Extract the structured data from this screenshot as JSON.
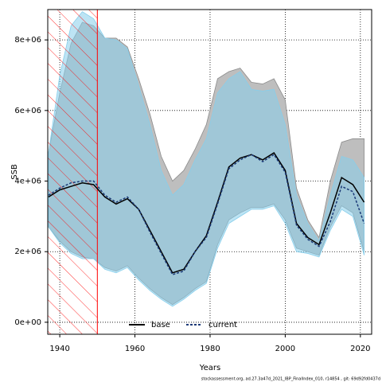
{
  "chart_data": {
    "type": "band-line",
    "x_label": "Years",
    "y_label": "SSB",
    "footer": "stockassessment.org, ad.27.3a47d_2021_IBP_FinalIndex_010, r14854 , git: 69d92fd0437d",
    "x": [
      1937,
      1940,
      1943,
      1946,
      1949,
      1952,
      1955,
      1958,
      1961,
      1964,
      1967,
      1970,
      1973,
      1976,
      1979,
      1982,
      1985,
      1988,
      1991,
      1994,
      1997,
      2000,
      2003,
      2006,
      2009,
      2012,
      2015,
      2018,
      2021
    ],
    "series": [
      {
        "name": "base",
        "color": "#000000",
        "dash": false,
        "band_color": "#bebebe",
        "band_stroke": "#8c8c8c",
        "values": [
          3550000,
          3750000,
          3850000,
          3950000,
          3900000,
          3550000,
          3350000,
          3500000,
          3200000,
          2600000,
          2000000,
          1400000,
          1500000,
          2000000,
          2450000,
          3400000,
          4400000,
          4650000,
          4750000,
          4600000,
          4800000,
          4300000,
          2800000,
          2400000,
          2200000,
          3100000,
          4100000,
          3900000,
          3400000
        ],
        "upper": [
          4800000,
          6500000,
          7900000,
          8500000,
          8400000,
          8050000,
          8050000,
          7800000,
          6900000,
          5900000,
          4700000,
          4000000,
          4300000,
          4900000,
          5600000,
          6900000,
          7100000,
          7200000,
          6800000,
          6750000,
          6900000,
          6300000,
          3800000,
          2900000,
          2400000,
          4000000,
          5100000,
          5200000,
          5200000
        ],
        "lower": [
          2700000,
          2300000,
          2000000,
          1850000,
          1800000,
          1550000,
          1450000,
          1600000,
          1250000,
          950000,
          700000,
          500000,
          700000,
          950000,
          1150000,
          2200000,
          2900000,
          3100000,
          3250000,
          3250000,
          3350000,
          2900000,
          2100000,
          2000000,
          1900000,
          2700000,
          3300000,
          3100000,
          2000000
        ]
      },
      {
        "name": "current",
        "color": "#1b3a78",
        "dash": true,
        "band_color": "rgba(135,206,235,0.55)",
        "band_stroke": "#87ceeb",
        "values": [
          3600000,
          3800000,
          3950000,
          4000000,
          4000000,
          3600000,
          3400000,
          3550000,
          3200000,
          2550000,
          1950000,
          1350000,
          1450000,
          2000000,
          2400000,
          3350000,
          4350000,
          4600000,
          4750000,
          4550000,
          4750000,
          4250000,
          2750000,
          2350000,
          2150000,
          2850000,
          3850000,
          3700000,
          2800000
        ],
        "upper": [
          4800000,
          7000000,
          8400000,
          8800000,
          8600000,
          8050000,
          8000000,
          7750000,
          6700000,
          5600000,
          4300000,
          3600000,
          3900000,
          4600000,
          5200000,
          6500000,
          6900000,
          7100000,
          6600000,
          6550000,
          6600000,
          5600000,
          3600000,
          2800000,
          2300000,
          3600000,
          4700000,
          4600000,
          4100000
        ],
        "lower": [
          2700000,
          2250000,
          1950000,
          1800000,
          1800000,
          1500000,
          1400000,
          1550000,
          1200000,
          900000,
          650000,
          450000,
          650000,
          900000,
          1100000,
          2100000,
          2800000,
          3000000,
          3200000,
          3200000,
          3300000,
          2800000,
          2000000,
          1950000,
          1850000,
          2600000,
          3200000,
          3000000,
          1900000
        ]
      }
    ],
    "shaded_xrange": [
      1936.8,
      1950
    ],
    "shade_color": "#ff0000",
    "xlim": [
      1936.8,
      2023
    ],
    "xticks": [
      1940,
      1960,
      1980,
      2000,
      2020
    ],
    "ylim": [
      -340000,
      8860000
    ],
    "yticks": [
      {
        "value": 0,
        "label": "0e+00"
      },
      {
        "value": 2000000,
        "label": "2e+06"
      },
      {
        "value": 4000000,
        "label": "4e+06"
      },
      {
        "value": 6000000,
        "label": "6e+06"
      },
      {
        "value": 8000000,
        "label": "8e+06"
      }
    ],
    "grid": true
  }
}
